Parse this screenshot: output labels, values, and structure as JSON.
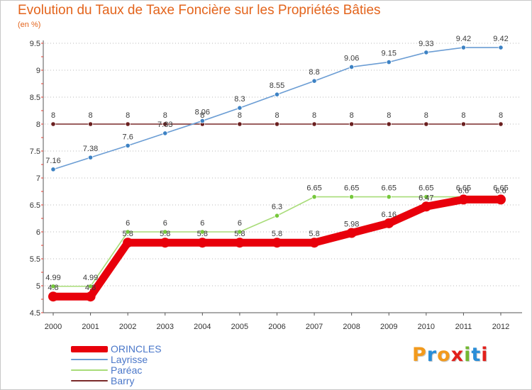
{
  "header": {
    "title": "Evolution du Taux de Taxe Foncière sur les Propriétés Bâties",
    "subtitle": "(en %)"
  },
  "brand": {
    "letters": [
      "P",
      "r",
      "o",
      "x",
      "i",
      "t",
      "i"
    ],
    "colors": [
      "#f29a1d",
      "#2a8ed8",
      "#f29a1d",
      "#e2201b",
      "#73b832",
      "#2a8ed8",
      "#e2201b"
    ]
  },
  "chart_data": {
    "type": "line",
    "title": "Evolution du Taux de Taxe Foncière sur les Propriétés Bâties",
    "ylabel": "(en %)",
    "xlabel": "",
    "ylim": [
      4.5,
      9.5
    ],
    "yticks": [
      4.5,
      5,
      5.5,
      6,
      6.5,
      7,
      7.5,
      8,
      8.5,
      9,
      9.5
    ],
    "ytick_labels": [
      "4.5",
      "5",
      "5.5",
      "6",
      "6.5",
      "7",
      "7.5",
      "8",
      "8.5",
      "9",
      "9.5"
    ],
    "categories": [
      "2000",
      "2001",
      "2002",
      "2003",
      "2004",
      "2005",
      "2006",
      "2007",
      "2008",
      "2009",
      "2010",
      "2011",
      "2012"
    ],
    "grid": "horizontal-dotted",
    "legend_position": "bottom-left",
    "series": [
      {
        "name": "ORINCLES",
        "color": "#e8000b",
        "marker": "#e8000b",
        "values": [
          4.8,
          4.8,
          5.8,
          5.8,
          5.8,
          5.8,
          5.8,
          5.8,
          5.98,
          6.16,
          6.47,
          6.6,
          6.6
        ],
        "labels": [
          "4.8",
          "4.8",
          "5.8",
          "5.8",
          "5.8",
          "5.8",
          "5.8",
          "5.8",
          "5.98",
          "6.16",
          "6.47",
          "6.6",
          "6.6"
        ]
      },
      {
        "name": "Layrisse",
        "color": "#6b9dd4",
        "marker": "#3d82c4",
        "values": [
          7.16,
          7.38,
          7.6,
          7.83,
          8.06,
          8.3,
          8.55,
          8.8,
          9.06,
          9.15,
          9.33,
          9.42,
          9.42
        ],
        "labels": [
          "7.16",
          "7.38",
          "7.6",
          "7.83",
          "8.06",
          "8.3",
          "8.55",
          "8.8",
          "9.06",
          "9.15",
          "9.33",
          "9.42",
          "9.42"
        ]
      },
      {
        "name": "Paréac",
        "color": "#a8dc78",
        "marker": "#76c83c",
        "values": [
          4.99,
          4.99,
          6,
          6,
          6,
          6,
          6.3,
          6.65,
          6.65,
          6.65,
          6.65,
          6.65,
          6.65
        ],
        "labels": [
          "4.99",
          "4.99",
          "6",
          "6",
          "6",
          "6",
          "6.3",
          "6.65",
          "6.65",
          "6.65",
          "6.65",
          "6.65",
          "6.65"
        ]
      },
      {
        "name": "Barry",
        "color": "#7a2a2a",
        "marker": "#6a1f1f",
        "values": [
          8,
          8,
          8,
          8,
          8,
          8,
          8,
          8,
          8,
          8,
          8,
          8,
          8
        ],
        "labels": [
          "8",
          "8",
          "8",
          "8",
          "8",
          "8",
          "8",
          "8",
          "8",
          "8",
          "8",
          "8",
          "8"
        ]
      }
    ]
  }
}
